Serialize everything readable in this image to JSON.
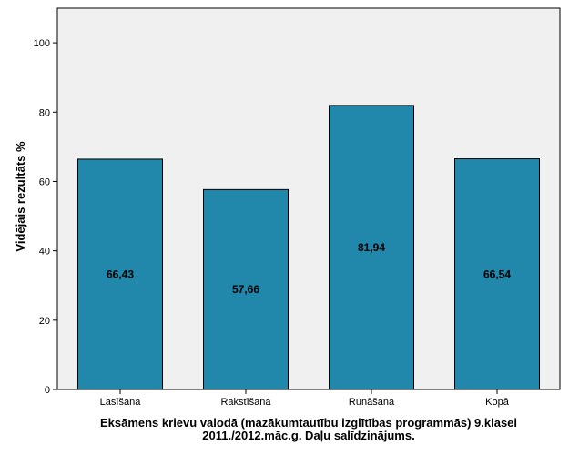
{
  "chart_data": {
    "type": "bar",
    "categories": [
      "Lasīšana",
      "Rakstīšana",
      "Runāšana",
      "Kopā"
    ],
    "values": [
      66.43,
      57.66,
      81.94,
      66.54
    ],
    "value_labels": [
      "66,43",
      "57,66",
      "81,94",
      "66,54"
    ],
    "ylabel": "Vidējais rezultāts %",
    "xlabel_line1": "Eksāmens krievu valodā (mazākumtautību izglītības programmās) 9.klasei",
    "xlabel_line2": "2011./2012.māc.g. Daļu salīdzinājums.",
    "ylim": [
      0,
      110
    ],
    "yticks": [
      0,
      20,
      40,
      60,
      80,
      100
    ],
    "grid": false,
    "legend": "none",
    "colors": {
      "bar": "#2188ab",
      "plot_bg": "#f0f0f0",
      "outline": "#000000"
    }
  }
}
